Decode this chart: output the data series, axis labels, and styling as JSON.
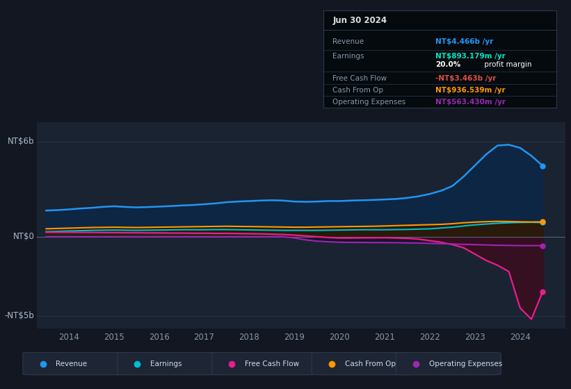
{
  "bg_color": "#131722",
  "plot_bg_color": "#1a2332",
  "colors": {
    "Revenue": "#2196f3",
    "Earnings": "#00bcd4",
    "Free_Cash_Flow": "#e91e8c",
    "Cash_From_Op": "#ff9800",
    "Operating_Expenses": "#9c27b0"
  },
  "ylabel_top": "NT$6b",
  "ylabel_bottom": "-NT$5b",
  "ylabel_zero": "NT$0",
  "ylim": [
    -5.8,
    7.2
  ],
  "xlim": [
    2013.3,
    2025.0
  ],
  "years": [
    2013.5,
    2013.75,
    2014.0,
    2014.25,
    2014.5,
    2014.75,
    2015.0,
    2015.25,
    2015.5,
    2015.75,
    2016.0,
    2016.25,
    2016.5,
    2016.75,
    2017.0,
    2017.25,
    2017.5,
    2017.75,
    2018.0,
    2018.25,
    2018.5,
    2018.75,
    2019.0,
    2019.25,
    2019.5,
    2019.75,
    2020.0,
    2020.25,
    2020.5,
    2020.75,
    2021.0,
    2021.25,
    2021.5,
    2021.75,
    2022.0,
    2022.25,
    2022.5,
    2022.75,
    2023.0,
    2023.25,
    2023.5,
    2023.75,
    2024.0,
    2024.25,
    2024.5
  ],
  "revenue": [
    1.65,
    1.68,
    1.72,
    1.78,
    1.82,
    1.88,
    1.92,
    1.88,
    1.85,
    1.87,
    1.9,
    1.93,
    1.97,
    2.0,
    2.05,
    2.1,
    2.18,
    2.22,
    2.25,
    2.28,
    2.3,
    2.28,
    2.22,
    2.2,
    2.22,
    2.25,
    2.25,
    2.28,
    2.3,
    2.32,
    2.35,
    2.38,
    2.45,
    2.55,
    2.7,
    2.9,
    3.2,
    3.8,
    4.5,
    5.2,
    5.75,
    5.8,
    5.6,
    5.1,
    4.47
  ],
  "earnings": [
    0.32,
    0.34,
    0.36,
    0.38,
    0.4,
    0.41,
    0.42,
    0.41,
    0.4,
    0.41,
    0.42,
    0.43,
    0.44,
    0.44,
    0.44,
    0.45,
    0.45,
    0.44,
    0.43,
    0.42,
    0.41,
    0.4,
    0.4,
    0.4,
    0.4,
    0.41,
    0.42,
    0.43,
    0.44,
    0.44,
    0.44,
    0.45,
    0.46,
    0.48,
    0.5,
    0.55,
    0.6,
    0.68,
    0.75,
    0.8,
    0.85,
    0.88,
    0.9,
    0.91,
    0.89
  ],
  "free_cash_flow": [
    0.28,
    0.28,
    0.28,
    0.27,
    0.27,
    0.26,
    0.26,
    0.25,
    0.25,
    0.24,
    0.24,
    0.23,
    0.23,
    0.22,
    0.22,
    0.21,
    0.21,
    0.2,
    0.19,
    0.18,
    0.16,
    0.14,
    0.1,
    0.05,
    0.0,
    -0.05,
    -0.08,
    -0.08,
    -0.07,
    -0.07,
    -0.06,
    -0.08,
    -0.1,
    -0.15,
    -0.25,
    -0.35,
    -0.5,
    -0.7,
    -1.1,
    -1.5,
    -1.8,
    -2.2,
    -4.5,
    -5.2,
    -3.46
  ],
  "cash_from_op": [
    0.5,
    0.52,
    0.54,
    0.56,
    0.58,
    0.59,
    0.6,
    0.59,
    0.58,
    0.59,
    0.6,
    0.61,
    0.62,
    0.63,
    0.64,
    0.65,
    0.66,
    0.65,
    0.64,
    0.63,
    0.62,
    0.61,
    0.6,
    0.6,
    0.61,
    0.62,
    0.63,
    0.64,
    0.65,
    0.66,
    0.68,
    0.7,
    0.72,
    0.74,
    0.76,
    0.78,
    0.82,
    0.88,
    0.92,
    0.95,
    0.97,
    0.96,
    0.94,
    0.93,
    0.94
  ],
  "operating_expenses": [
    0.0,
    0.0,
    0.0,
    0.0,
    0.0,
    0.0,
    0.0,
    0.0,
    0.0,
    0.0,
    0.0,
    0.0,
    0.0,
    0.0,
    0.0,
    0.0,
    0.0,
    0.0,
    0.0,
    0.0,
    0.0,
    0.0,
    -0.08,
    -0.2,
    -0.28,
    -0.32,
    -0.35,
    -0.36,
    -0.36,
    -0.37,
    -0.37,
    -0.38,
    -0.39,
    -0.4,
    -0.42,
    -0.44,
    -0.46,
    -0.48,
    -0.5,
    -0.52,
    -0.54,
    -0.55,
    -0.56,
    -0.56,
    -0.56
  ],
  "xticks": [
    2014,
    2015,
    2016,
    2017,
    2018,
    2019,
    2020,
    2021,
    2022,
    2023,
    2024
  ],
  "tooltip_title": "Jun 30 2024",
  "tooltip_rows": [
    {
      "label": "Revenue",
      "value": "NT$4.466b /yr",
      "value_color": "#2196f3"
    },
    {
      "label": "Earnings",
      "value": "NT$893.179m /yr",
      "value_color": "#00e5c0"
    },
    {
      "label": "",
      "value": "20.0%",
      "value_color": "#ffffff",
      "suffix": " profit margin",
      "suffix_color": "#ffffff"
    },
    {
      "label": "Free Cash Flow",
      "value": "-NT$3.463b /yr",
      "value_color": "#e05040"
    },
    {
      "label": "Cash From Op",
      "value": "NT$936.539m /yr",
      "value_color": "#ff9800"
    },
    {
      "label": "Operating Expenses",
      "value": "NT$563.430m /yr",
      "value_color": "#9c27b0"
    }
  ],
  "legend_items": [
    {
      "label": "Revenue",
      "color": "#2196f3"
    },
    {
      "label": "Earnings",
      "color": "#00bcd4"
    },
    {
      "label": "Free Cash Flow",
      "color": "#e91e8c"
    },
    {
      "label": "Cash From Op",
      "color": "#ff9800"
    },
    {
      "label": "Operating Expenses",
      "color": "#9c27b0"
    }
  ]
}
